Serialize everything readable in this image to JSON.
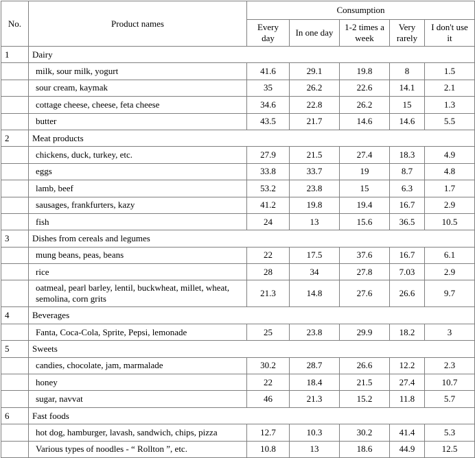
{
  "header": {
    "no": "No.",
    "product": "Product names",
    "consumption": "Consumption",
    "columns": [
      "Every day",
      "In one day",
      "1-2 times a week",
      "Very rarely",
      "I don't use it"
    ]
  },
  "groups": [
    {
      "no": "1",
      "name": "Dairy",
      "items": [
        {
          "name": "milk, sour milk, yogurt",
          "values": [
            41.6,
            29.1,
            19.8,
            8,
            1.5
          ]
        },
        {
          "name": "sour cream, kaymak",
          "values": [
            35,
            26.2,
            22.6,
            14.1,
            2.1
          ]
        },
        {
          "name": "cottage cheese, cheese, feta cheese",
          "values": [
            34.6,
            22.8,
            26.2,
            15,
            1.3
          ]
        },
        {
          "name": "butter",
          "values": [
            43.5,
            21.7,
            14.6,
            14.6,
            5.5
          ]
        }
      ]
    },
    {
      "no": "2",
      "name": "Meat products",
      "items": [
        {
          "name": "chickens, duck, turkey, etc.",
          "values": [
            27.9,
            21.5,
            27.4,
            18.3,
            4.9
          ]
        },
        {
          "name": "eggs",
          "values": [
            33.8,
            33.7,
            19,
            8.7,
            4.8
          ]
        },
        {
          "name": "lamb, beef",
          "values": [
            53.2,
            23.8,
            15,
            6.3,
            1.7
          ]
        },
        {
          "name": "sausages, frankfurters, kazy",
          "values": [
            41.2,
            19.8,
            19.4,
            16.7,
            2.9
          ]
        },
        {
          "name": "fish",
          "values": [
            24,
            13,
            15.6,
            36.5,
            10.5
          ]
        }
      ]
    },
    {
      "no": "3",
      "name": "Dishes from cereals and legumes",
      "items": [
        {
          "name": "mung beans, peas, beans",
          "values": [
            22,
            17.5,
            37.6,
            16.7,
            6.1
          ]
        },
        {
          "name": "rice",
          "values": [
            28,
            34,
            27.8,
            7.03,
            2.9
          ]
        },
        {
          "name": "oatmeal, pearl barley, lentil, buckwheat, millet, wheat, semolina, corn grits",
          "values": [
            21.3,
            14.8,
            27.6,
            26.6,
            9.7
          ]
        }
      ]
    },
    {
      "no": "4",
      "name": "Beverages",
      "items": [
        {
          "name": "Fanta, Coca-Cola, Sprite, Pepsi, lemonade",
          "values": [
            25,
            23.8,
            29.9,
            18.2,
            3
          ]
        }
      ]
    },
    {
      "no": "5",
      "name": "Sweets",
      "items": [
        {
          "name": "candies, chocolate, jam, marmalade",
          "values": [
            30.2,
            28.7,
            26.6,
            12.2,
            2.3
          ]
        },
        {
          "name": "honey",
          "values": [
            22,
            18.4,
            21.5,
            27.4,
            10.7
          ]
        },
        {
          "name": "sugar, navvat",
          "values": [
            46,
            21.3,
            15.2,
            11.8,
            5.7
          ]
        }
      ]
    },
    {
      "no": "6",
      "name": "Fast foods",
      "items": [
        {
          "name": "hot dog, hamburger, lavash, sandwich, chips, pizza",
          "values": [
            12.7,
            10.3,
            30.2,
            41.4,
            5.3
          ]
        },
        {
          "name": "Various types of noodles - “ Rollton ”, etc.",
          "values": [
            10.8,
            13,
            18.6,
            44.9,
            12.5
          ]
        }
      ]
    }
  ]
}
